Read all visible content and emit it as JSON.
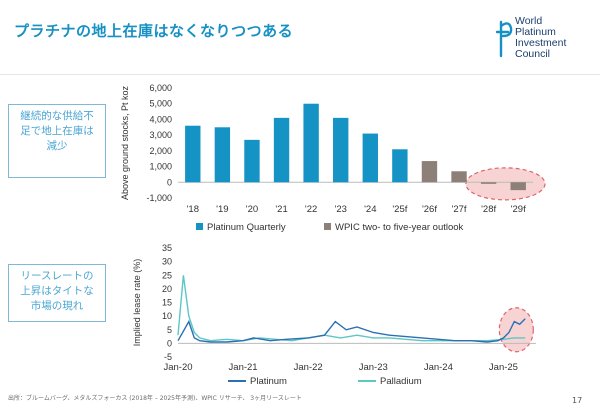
{
  "slide": {
    "title": "プラチナの地上在庫はなくなりつつある",
    "logo_lines": [
      "World",
      "Platinum",
      "Investment",
      "Council"
    ],
    "logo_letter": "pt",
    "side_box_1": [
      "継続的な供給不",
      "足で地上在庫は",
      "減少"
    ],
    "side_box_2": [
      "リースレートの",
      "上昇はタイトな",
      "市場の現れ"
    ],
    "footer": "出所：ブルームバーグ、メタルズフォーカス (2018年 – 2025年予測)、WPIC リサーチ、 3ヶ月リースレート",
    "page_number": "17"
  },
  "colors": {
    "accent": "#1790c4",
    "bar_blue": "#1693c5",
    "bar_gray": "#8c8079",
    "highlight_fill": "#f7d3d3",
    "highlight_stroke": "#e0656a",
    "platinum_line": "#2b70b3",
    "palladium_line": "#5cc7c4"
  },
  "chart_data": [
    {
      "type": "bar",
      "title": "",
      "ylabel": "Above ground stocks, Pt koz",
      "xlabel": "",
      "categories": [
        "'18",
        "'19",
        "'20",
        "'21",
        "'22",
        "'23",
        "'24",
        "'25f",
        "'26f",
        "'27f",
        "'28f",
        "'29f"
      ],
      "yticks": [
        "6,000",
        "5,000",
        "4,000",
        "3,000",
        "2,000",
        "1,000",
        "0",
        "-1,000"
      ],
      "ylim": [
        -1000,
        6000
      ],
      "grid": false,
      "legend_position": "bottom",
      "series": [
        {
          "name": "Platinum Quarterly",
          "color": "#1693c5",
          "values": [
            3600,
            3500,
            2700,
            4100,
            5000,
            4100,
            3100,
            2100,
            null,
            null,
            null,
            null
          ]
        },
        {
          "name": "WPIC two- to five-year outlook",
          "color": "#8c8079",
          "values": [
            null,
            null,
            null,
            null,
            null,
            null,
            null,
            null,
            1350,
            700,
            -100,
            -500
          ]
        }
      ],
      "highlight": "'28f–'29f"
    },
    {
      "type": "line",
      "title": "",
      "ylabel": "Implied lease rate (%)",
      "xlabel": "",
      "x_ticks": [
        "Jan-20",
        "Jan-21",
        "Jan-22",
        "Jan-23",
        "Jan-24",
        "Jan-25"
      ],
      "yticks": [
        "35",
        "30",
        "25",
        "20",
        "15",
        "10",
        "5",
        "0",
        "-5"
      ],
      "ylim": [
        -5,
        35
      ],
      "grid": false,
      "legend_position": "bottom",
      "series": [
        {
          "name": "Platinum",
          "color": "#2b70b3",
          "x": [
            "2020-01",
            "2020-03",
            "2020-04",
            "2020-05",
            "2020-07",
            "2020-10",
            "2021-01",
            "2021-03",
            "2021-06",
            "2021-09",
            "2022-01",
            "2022-04",
            "2022-06",
            "2022-08",
            "2022-10",
            "2023-01",
            "2023-04",
            "2023-07",
            "2023-10",
            "2024-01",
            "2024-04",
            "2024-07",
            "2024-10",
            "2024-12",
            "2025-01",
            "2025-02",
            "2025-03",
            "2025-04",
            "2025-05"
          ],
          "y": [
            1,
            8,
            2,
            1,
            0.5,
            0.5,
            1,
            2,
            1,
            1.5,
            2,
            3,
            8,
            5,
            6,
            4,
            3,
            2.5,
            2,
            1.5,
            1,
            1,
            0.5,
            1,
            2,
            4,
            8,
            7,
            9
          ]
        },
        {
          "name": "Palladium",
          "color": "#5cc7c4",
          "x": [
            "2020-01",
            "2020-02",
            "2020-03",
            "2020-04",
            "2020-05",
            "2020-07",
            "2020-10",
            "2021-01",
            "2021-04",
            "2021-07",
            "2021-10",
            "2022-01",
            "2022-04",
            "2022-07",
            "2022-10",
            "2023-01",
            "2023-04",
            "2023-07",
            "2023-10",
            "2024-01",
            "2024-04",
            "2024-07",
            "2024-10",
            "2025-01",
            "2025-03",
            "2025-05"
          ],
          "y": [
            3,
            25,
            10,
            4,
            2,
            1,
            1.5,
            1,
            2,
            1.5,
            1,
            2,
            3,
            2,
            3,
            2,
            2,
            1.5,
            1,
            1,
            1,
            1,
            1,
            1.5,
            2,
            2
          ]
        }
      ],
      "highlight": "2025"
    }
  ]
}
